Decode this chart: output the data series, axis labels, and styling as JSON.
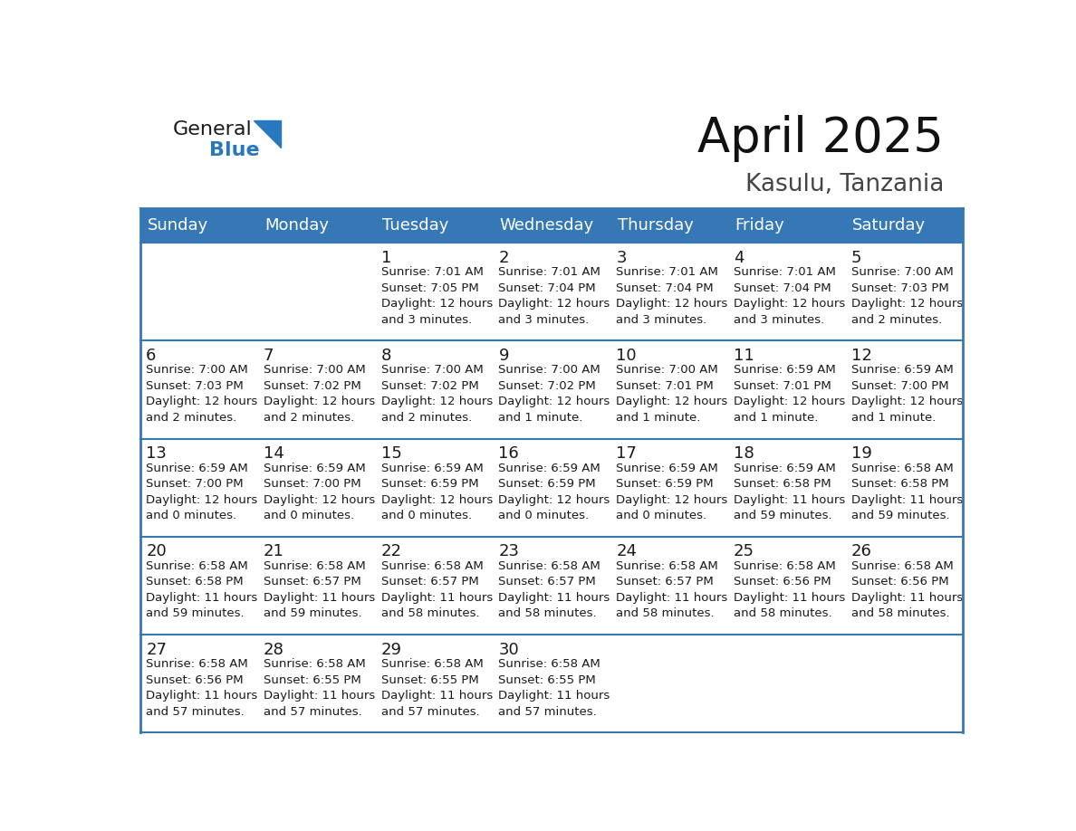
{
  "title": "April 2025",
  "subtitle": "Kasulu, Tanzania",
  "header_color": "#3578b5",
  "header_text_color": "#ffffff",
  "cell_bg_color": "#ffffff",
  "row_separator_color": "#3578b5",
  "border_color": "#3578b5",
  "day_names": [
    "Sunday",
    "Monday",
    "Tuesday",
    "Wednesday",
    "Thursday",
    "Friday",
    "Saturday"
  ],
  "title_fontsize": 38,
  "subtitle_fontsize": 19,
  "header_fontsize": 13,
  "day_num_fontsize": 13,
  "cell_text_fontsize": 9.5,
  "logo_fontsize1": 16,
  "logo_fontsize2": 16,
  "logo_text1": "General",
  "logo_text2": "Blue",
  "logo_color1": "#1a1a1a",
  "logo_color2": "#2878c0",
  "logo_triangle_color": "#2878c0",
  "weeks": [
    [
      {
        "day": "",
        "text": ""
      },
      {
        "day": "",
        "text": ""
      },
      {
        "day": "1",
        "text": "Sunrise: 7:01 AM\nSunset: 7:05 PM\nDaylight: 12 hours\nand 3 minutes."
      },
      {
        "day": "2",
        "text": "Sunrise: 7:01 AM\nSunset: 7:04 PM\nDaylight: 12 hours\nand 3 minutes."
      },
      {
        "day": "3",
        "text": "Sunrise: 7:01 AM\nSunset: 7:04 PM\nDaylight: 12 hours\nand 3 minutes."
      },
      {
        "day": "4",
        "text": "Sunrise: 7:01 AM\nSunset: 7:04 PM\nDaylight: 12 hours\nand 3 minutes."
      },
      {
        "day": "5",
        "text": "Sunrise: 7:00 AM\nSunset: 7:03 PM\nDaylight: 12 hours\nand 2 minutes."
      }
    ],
    [
      {
        "day": "6",
        "text": "Sunrise: 7:00 AM\nSunset: 7:03 PM\nDaylight: 12 hours\nand 2 minutes."
      },
      {
        "day": "7",
        "text": "Sunrise: 7:00 AM\nSunset: 7:02 PM\nDaylight: 12 hours\nand 2 minutes."
      },
      {
        "day": "8",
        "text": "Sunrise: 7:00 AM\nSunset: 7:02 PM\nDaylight: 12 hours\nand 2 minutes."
      },
      {
        "day": "9",
        "text": "Sunrise: 7:00 AM\nSunset: 7:02 PM\nDaylight: 12 hours\nand 1 minute."
      },
      {
        "day": "10",
        "text": "Sunrise: 7:00 AM\nSunset: 7:01 PM\nDaylight: 12 hours\nand 1 minute."
      },
      {
        "day": "11",
        "text": "Sunrise: 6:59 AM\nSunset: 7:01 PM\nDaylight: 12 hours\nand 1 minute."
      },
      {
        "day": "12",
        "text": "Sunrise: 6:59 AM\nSunset: 7:00 PM\nDaylight: 12 hours\nand 1 minute."
      }
    ],
    [
      {
        "day": "13",
        "text": "Sunrise: 6:59 AM\nSunset: 7:00 PM\nDaylight: 12 hours\nand 0 minutes."
      },
      {
        "day": "14",
        "text": "Sunrise: 6:59 AM\nSunset: 7:00 PM\nDaylight: 12 hours\nand 0 minutes."
      },
      {
        "day": "15",
        "text": "Sunrise: 6:59 AM\nSunset: 6:59 PM\nDaylight: 12 hours\nand 0 minutes."
      },
      {
        "day": "16",
        "text": "Sunrise: 6:59 AM\nSunset: 6:59 PM\nDaylight: 12 hours\nand 0 minutes."
      },
      {
        "day": "17",
        "text": "Sunrise: 6:59 AM\nSunset: 6:59 PM\nDaylight: 12 hours\nand 0 minutes."
      },
      {
        "day": "18",
        "text": "Sunrise: 6:59 AM\nSunset: 6:58 PM\nDaylight: 11 hours\nand 59 minutes."
      },
      {
        "day": "19",
        "text": "Sunrise: 6:58 AM\nSunset: 6:58 PM\nDaylight: 11 hours\nand 59 minutes."
      }
    ],
    [
      {
        "day": "20",
        "text": "Sunrise: 6:58 AM\nSunset: 6:58 PM\nDaylight: 11 hours\nand 59 minutes."
      },
      {
        "day": "21",
        "text": "Sunrise: 6:58 AM\nSunset: 6:57 PM\nDaylight: 11 hours\nand 59 minutes."
      },
      {
        "day": "22",
        "text": "Sunrise: 6:58 AM\nSunset: 6:57 PM\nDaylight: 11 hours\nand 58 minutes."
      },
      {
        "day": "23",
        "text": "Sunrise: 6:58 AM\nSunset: 6:57 PM\nDaylight: 11 hours\nand 58 minutes."
      },
      {
        "day": "24",
        "text": "Sunrise: 6:58 AM\nSunset: 6:57 PM\nDaylight: 11 hours\nand 58 minutes."
      },
      {
        "day": "25",
        "text": "Sunrise: 6:58 AM\nSunset: 6:56 PM\nDaylight: 11 hours\nand 58 minutes."
      },
      {
        "day": "26",
        "text": "Sunrise: 6:58 AM\nSunset: 6:56 PM\nDaylight: 11 hours\nand 58 minutes."
      }
    ],
    [
      {
        "day": "27",
        "text": "Sunrise: 6:58 AM\nSunset: 6:56 PM\nDaylight: 11 hours\nand 57 minutes."
      },
      {
        "day": "28",
        "text": "Sunrise: 6:58 AM\nSunset: 6:55 PM\nDaylight: 11 hours\nand 57 minutes."
      },
      {
        "day": "29",
        "text": "Sunrise: 6:58 AM\nSunset: 6:55 PM\nDaylight: 11 hours\nand 57 minutes."
      },
      {
        "day": "30",
        "text": "Sunrise: 6:58 AM\nSunset: 6:55 PM\nDaylight: 11 hours\nand 57 minutes."
      },
      {
        "day": "",
        "text": ""
      },
      {
        "day": "",
        "text": ""
      },
      {
        "day": "",
        "text": ""
      }
    ]
  ]
}
